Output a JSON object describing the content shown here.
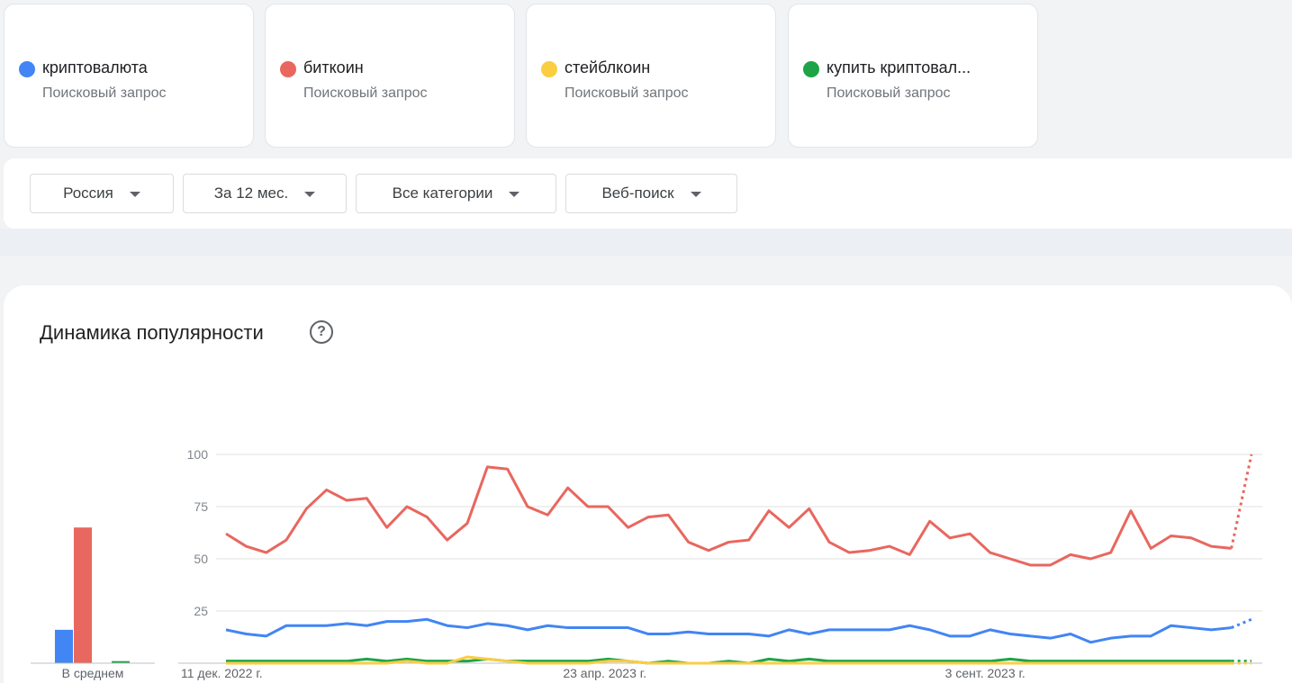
{
  "terms": [
    {
      "name": "криптовалюта",
      "type": "Поисковый запрос",
      "color": "#4285f4"
    },
    {
      "name": "биткоин",
      "type": "Поисковый запрос",
      "color": "#e8675f"
    },
    {
      "name": "стейблкоин",
      "type": "Поисковый запрос",
      "color": "#fbcd42"
    },
    {
      "name": "купить криптовал...",
      "type": "Поисковый запрос",
      "color": "#1ea446"
    }
  ],
  "filters": {
    "region": "Россия",
    "period": "За 12 мес.",
    "category": "Все категории",
    "search_type": "Веб-поиск"
  },
  "chart_section": {
    "title": "Динамика популярности",
    "help_icon": "help-circle-icon"
  },
  "chart_data": [
    {
      "type": "bar",
      "xlabel": "В среднем",
      "series": [
        {
          "name": "криптовалюта",
          "values": [
            16
          ]
        },
        {
          "name": "биткоин",
          "values": [
            65
          ]
        },
        {
          "name": "стейблкоин",
          "values": [
            0
          ]
        },
        {
          "name": "купить криптовал...",
          "values": [
            1
          ]
        }
      ],
      "ylim": [
        0,
        100
      ]
    },
    {
      "type": "line",
      "yticks": [
        25,
        50,
        75,
        100
      ],
      "ylim": [
        0,
        100
      ],
      "xtick_labels": [
        "11 дек. 2022 г.",
        "23 апр. 2023 г.",
        "3 сент. 2023 г."
      ],
      "xtick_indices": [
        0,
        19,
        38
      ],
      "grid": true,
      "partial_last_point": true,
      "series": [
        {
          "name": "биткоин",
          "values": [
            62,
            56,
            53,
            59,
            74,
            83,
            78,
            79,
            65,
            75,
            70,
            59,
            67,
            94,
            93,
            75,
            71,
            84,
            75,
            75,
            65,
            70,
            71,
            58,
            54,
            58,
            59,
            73,
            65,
            74,
            58,
            53,
            54,
            56,
            52,
            68,
            60,
            62,
            53,
            50,
            47,
            47,
            52,
            50,
            53,
            73,
            55,
            61,
            60,
            56,
            55,
            100
          ]
        },
        {
          "name": "криптовалюта",
          "values": [
            16,
            14,
            13,
            18,
            18,
            18,
            19,
            18,
            20,
            20,
            21,
            18,
            17,
            19,
            18,
            16,
            18,
            17,
            17,
            17,
            17,
            14,
            14,
            15,
            14,
            14,
            14,
            13,
            16,
            14,
            16,
            16,
            16,
            16,
            18,
            16,
            13,
            13,
            16,
            14,
            13,
            12,
            14,
            10,
            12,
            13,
            13,
            18,
            17,
            16,
            17,
            21
          ]
        },
        {
          "name": "стейблкоин",
          "values": [
            0,
            0,
            0,
            0,
            0,
            0,
            0,
            0,
            0,
            1,
            0,
            0,
            3,
            2,
            1,
            0,
            0,
            0,
            0,
            1,
            1,
            0,
            0,
            0,
            0,
            0,
            0,
            0,
            0,
            0,
            0,
            0,
            0,
            0,
            0,
            0,
            0,
            0,
            0,
            0,
            0,
            0,
            0,
            0,
            0,
            0,
            0,
            0,
            0,
            0,
            0,
            0
          ]
        },
        {
          "name": "купить криптовал...",
          "values": [
            1,
            1,
            1,
            1,
            1,
            1,
            1,
            2,
            1,
            2,
            1,
            1,
            1,
            2,
            1,
            1,
            1,
            1,
            1,
            2,
            1,
            0,
            1,
            0,
            0,
            1,
            0,
            2,
            1,
            2,
            1,
            1,
            1,
            1,
            1,
            1,
            1,
            1,
            1,
            2,
            1,
            1,
            1,
            1,
            1,
            1,
            1,
            1,
            1,
            1,
            1,
            1
          ]
        }
      ]
    }
  ]
}
